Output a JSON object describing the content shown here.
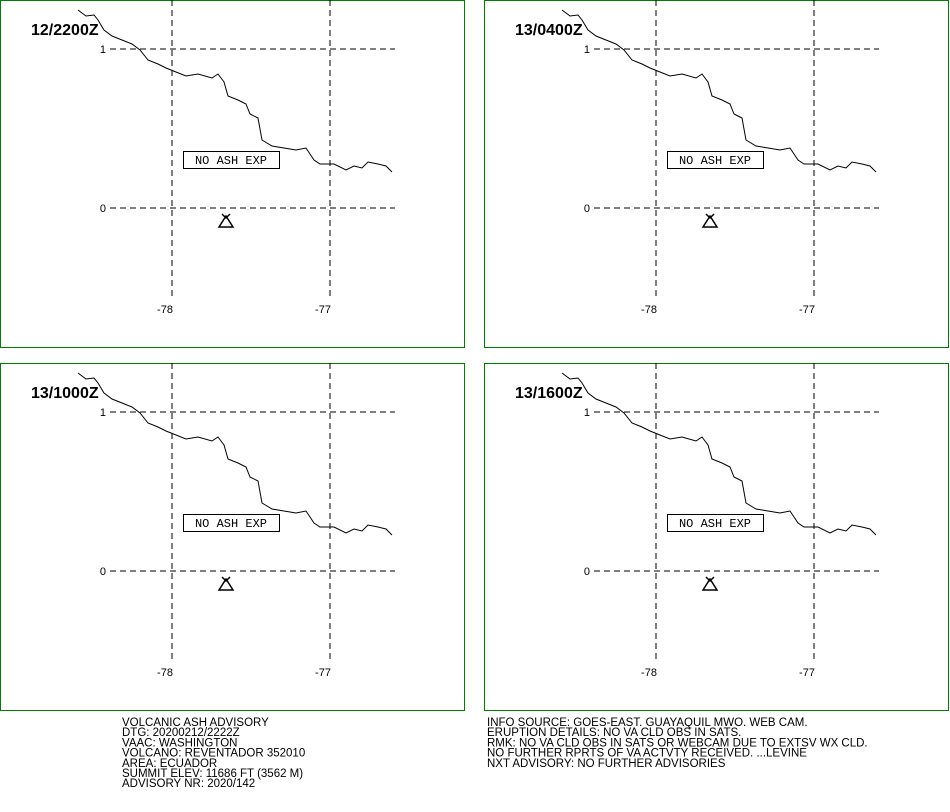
{
  "panels": [
    {
      "time": "12/2200Z",
      "note": "NO ASH EXP",
      "lat_labels": [
        "1",
        "0"
      ],
      "lon_labels": [
        "-78",
        "-77"
      ]
    },
    {
      "time": "13/0400Z",
      "note": "NO ASH EXP",
      "lat_labels": [
        "1",
        "0"
      ],
      "lon_labels": [
        "-78",
        "-77"
      ]
    },
    {
      "time": "13/1000Z",
      "note": "NO ASH EXP",
      "lat_labels": [
        "1",
        "0"
      ],
      "lon_labels": [
        "-78",
        "-77"
      ]
    },
    {
      "time": "13/1600Z",
      "note": "NO ASH EXP",
      "lat_labels": [
        "1",
        "0"
      ],
      "lon_labels": [
        "-78",
        "-77"
      ]
    }
  ],
  "advisory_left": [
    "VOLCANIC ASH ADVISORY",
    "DTG: 20200212/2222Z",
    "VAAC: WASHINGTON",
    "VOLCANO: REVENTADOR 352010",
    "AREA: ECUADOR",
    "SUMMIT ELEV: 11686 FT (3562 M)",
    "ADVISORY NR: 2020/142"
  ],
  "advisory_right": [
    "INFO SOURCE: GOES-EAST. GUAYAQUIL MWO. WEB CAM.",
    "ERUPTION DETAILS: NO VA CLD OBS IN SATS.",
    "RMK: NO VA CLD OBS IN SATS OR WEBCAM DUE TO EXTSV WX CLD.",
    "NO FURTHER RPRTS OF VA ACTVTY RECEIVED. ...LEVINE",
    "NXT ADVISORY: NO FURTHER ADVISORIES"
  ]
}
